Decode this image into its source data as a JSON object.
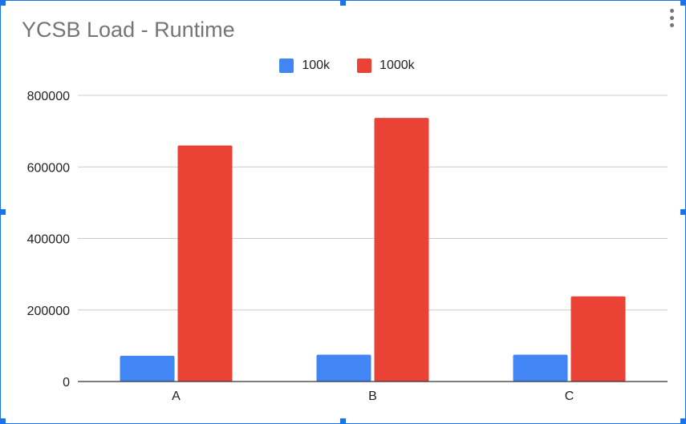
{
  "chart_data": {
    "type": "bar",
    "title": "YCSB Load - Runtime",
    "categories": [
      "A",
      "B",
      "C"
    ],
    "series": [
      {
        "name": "100k",
        "color": "#4285f4",
        "values": [
          72000,
          75000,
          75000
        ]
      },
      {
        "name": "1000k",
        "color": "#ea4335",
        "values": [
          660000,
          737000,
          238000
        ]
      }
    ],
    "yticks": [
      "0",
      "200000",
      "400000",
      "600000",
      "800000"
    ],
    "ylim": [
      0,
      800000
    ],
    "grid": true,
    "legend_position": "top"
  },
  "colors": {
    "title": "#757575",
    "gridline": "#cccccc",
    "baseline": "#333333",
    "selection_border": "#1a73e8"
  },
  "icons": {
    "menu": "more-vert-icon"
  }
}
